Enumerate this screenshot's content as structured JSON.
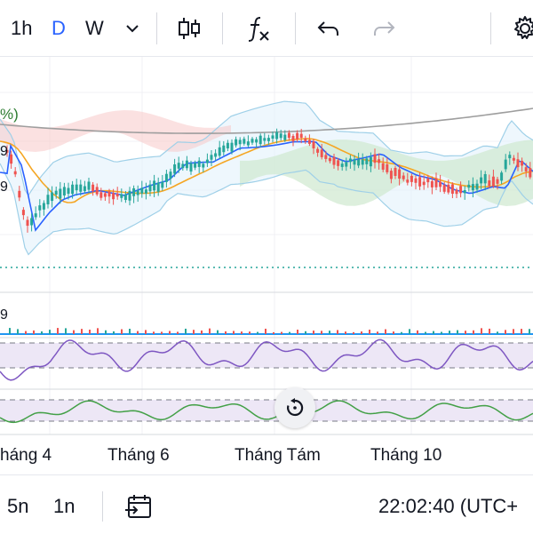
{
  "toolbar": {
    "interval_1h": "1h",
    "interval_d": "D",
    "interval_w": "W",
    "interval_dropdown_icon": "chevron-down-icon",
    "chart_type_icon": "candles-icon",
    "indicators_icon": "fx-icon",
    "undo_icon": "undo-icon",
    "redo_icon": "redo-icon",
    "settings_icon": "gear-icon",
    "active_color": "#2962ff"
  },
  "chart": {
    "price_label_fragment": "%)",
    "left_digit_a": "9",
    "left_digit_b": "9",
    "left_digit_c": "9",
    "x_axis_labels": [
      "háng 4",
      "Tháng 6",
      "Tháng Tám",
      "Tháng 10"
    ],
    "reset_icon": "reset-chart-icon",
    "colors": {
      "up": "#26a69a",
      "down": "#ef5350",
      "bollinger": "#9fd0e8",
      "ma_blue": "#2962ff",
      "ma_orange": "#f5a623",
      "ma_gray": "#9e9e9e",
      "rsi_line": "#7e57c2",
      "osc_line": "#43a047",
      "dotted_level": "#26a69a"
    }
  },
  "bottom_bar": {
    "range_5n": "5n",
    "range_1n": "1n",
    "goto_date_icon": "calendar-goto-icon",
    "clock": "22:02:40 (UTC+"
  }
}
